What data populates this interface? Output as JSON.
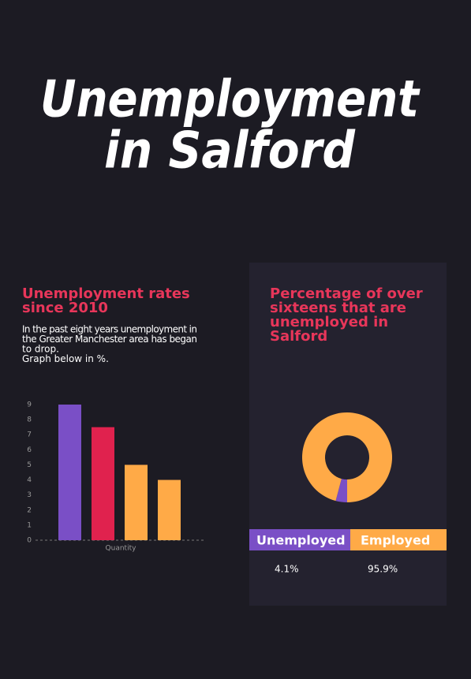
{
  "title": [
    "Unemployment",
    "in Salford"
  ],
  "chart_data": [
    {
      "type": "bar",
      "title": [
        "Unemployment rates",
        "since 2010"
      ],
      "description": [
        "In the past eight years unemployment in",
        "the Greater Manchester area has began",
        "to drop.",
        "Graph below in %."
      ],
      "x_label": "Quantity",
      "categories": [
        null,
        null,
        null,
        null
      ],
      "values": [
        9,
        7.5,
        5,
        4
      ],
      "colors": [
        "#7a4fc6",
        "#e0224e",
        "#ffaa47",
        "#ffaa47"
      ],
      "ylim": [
        0,
        9
      ],
      "yticks": [
        0,
        1,
        2,
        3,
        4,
        5,
        6,
        7,
        8,
        9
      ]
    },
    {
      "type": "pie",
      "title": [
        "Percentage of over",
        "sixteens that are",
        "unemployed in",
        "Salford"
      ],
      "categories": [
        "Unemployed",
        "Employed"
      ],
      "values": [
        4.1,
        95.9
      ],
      "value_labels": [
        "4.1%",
        "95.9%"
      ],
      "colors": [
        "#7a4fc6",
        "#ffaa47"
      ]
    }
  ]
}
